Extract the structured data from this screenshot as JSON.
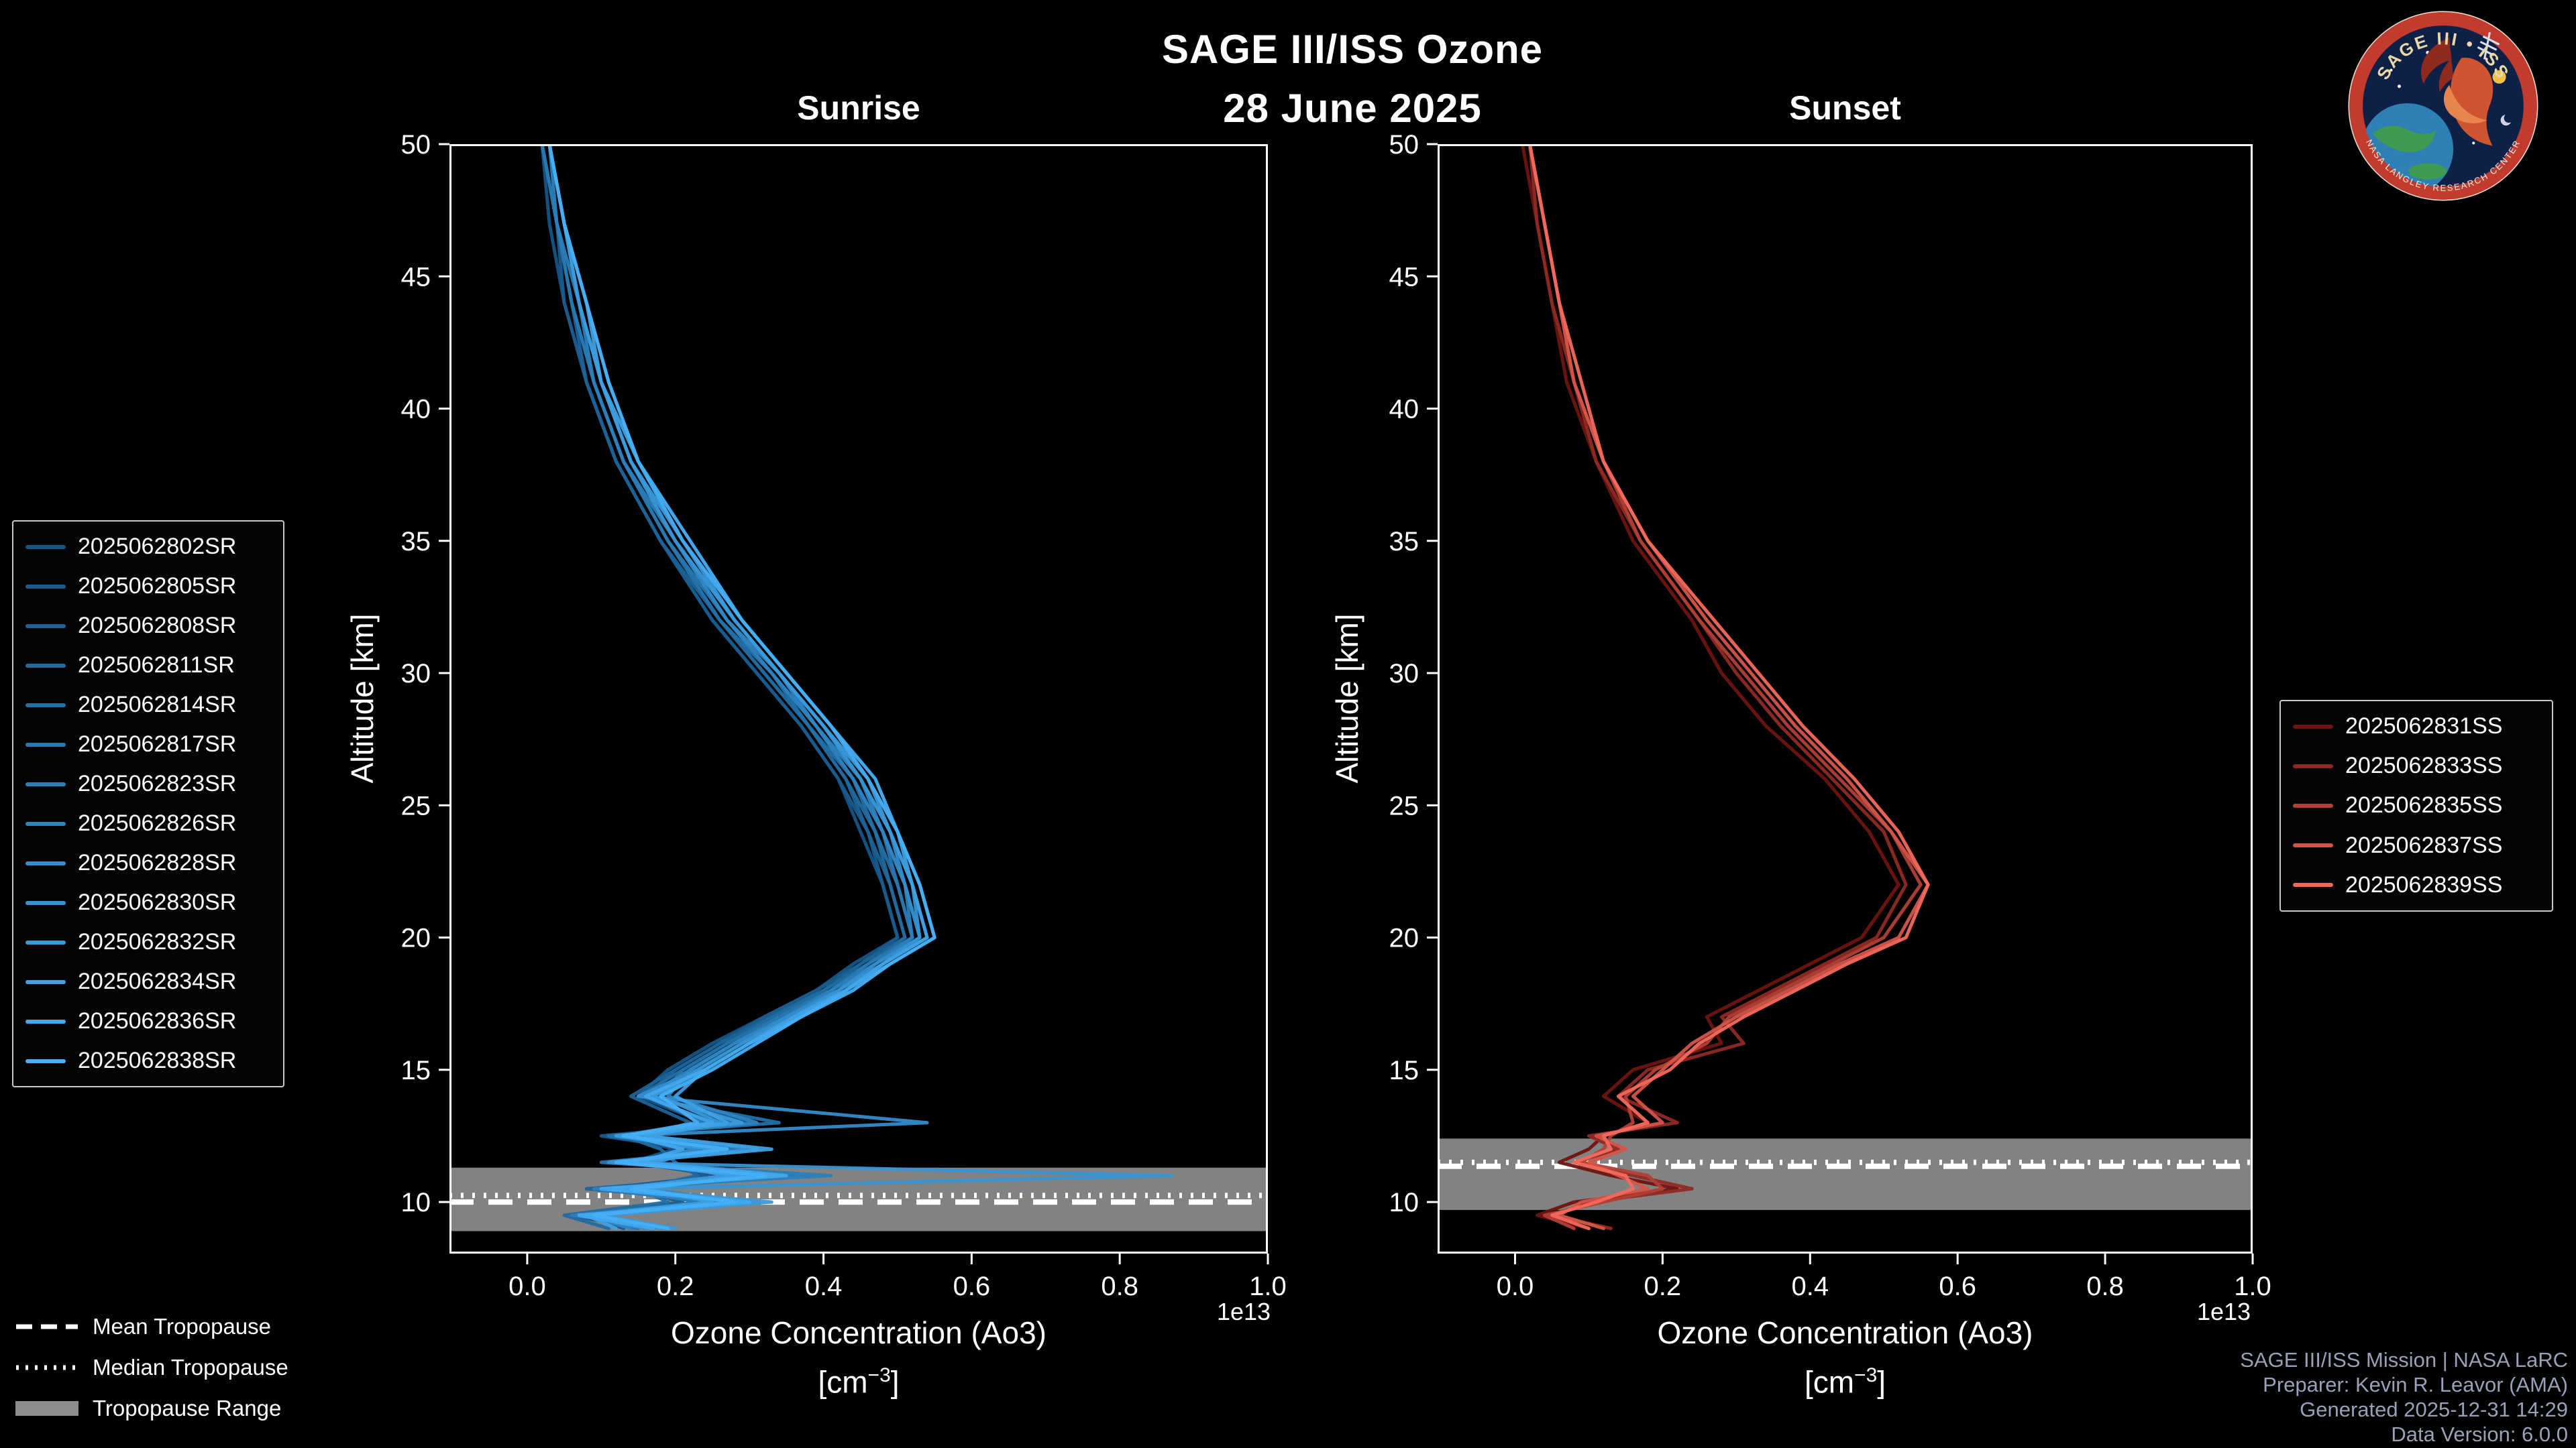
{
  "header": {
    "title_line1": "SAGE III/ISS Ozone",
    "title_line2": "28 June 2025"
  },
  "logo": {
    "arc_text": "SAGE III • ISS",
    "ring_text": "NASA LANGLEY RESEARCH CENTER"
  },
  "axis": {
    "ylabel": "Altitude [km]",
    "xlabel": "Ozone Concentration (Ao3)",
    "unit_open": "[cm",
    "unit_exp": "−3",
    "unit_close": "]"
  },
  "tropopause_legend": {
    "mean_label": "Mean Tropopause",
    "median_label": "Median Tropopause",
    "range_label": "Tropopause Range"
  },
  "footer": {
    "line1": "SAGE III/ISS Mission | NASA LaRC",
    "line2": "Preparer: Kevin R. Leavor (AMA)",
    "line3": "Generated 2025-12-31 14:29",
    "line4": "Data Version: 6.0.0"
  },
  "chart_data": [
    {
      "type": "line",
      "panel": "sunrise",
      "title": "Sunrise",
      "xlabel": "Ozone Concentration (Ao3) [cm^-3]",
      "ylabel": "Altitude [km]",
      "x_offset_label": "1e13",
      "x_unit_multiplier": 10000000000000.0,
      "xlim": [
        -0.105,
        1.0
      ],
      "ylim": [
        8.05,
        50
      ],
      "x_ticks": [
        0.0,
        0.2,
        0.4,
        0.6,
        0.8,
        1.0
      ],
      "x_tick_labels": [
        "0.0",
        "0.2",
        "0.4",
        "0.6",
        "0.8",
        "1.0"
      ],
      "y_ticks": [
        10,
        15,
        20,
        25,
        30,
        35,
        40,
        45,
        50
      ],
      "grid": false,
      "legend_position": "left-outside",
      "altitudes_km": [
        50,
        47,
        44,
        41,
        38,
        35,
        32,
        30,
        28,
        26,
        24,
        22,
        20,
        19,
        18,
        17,
        16,
        15,
        14,
        13,
        12.5,
        12,
        11.5,
        11,
        10.5,
        10,
        9.5,
        9
      ],
      "tropopause": {
        "mean_km": 10.0,
        "median_km": 10.25,
        "range_km": [
          8.9,
          11.3
        ]
      },
      "series": [
        {
          "name": "2025062802SR",
          "color": "#145587",
          "values": [
            0.02,
            0.03,
            0.05,
            0.08,
            0.12,
            0.18,
            0.25,
            0.31,
            0.37,
            0.42,
            0.45,
            0.48,
            0.5,
            0.44,
            0.39,
            0.32,
            0.25,
            0.19,
            0.15,
            0.24,
            0.12,
            0.2,
            0.14,
            0.26,
            0.1,
            0.24,
            0.06,
            0.15
          ]
        },
        {
          "name": "2025062805SR",
          "color": "#185C8F",
          "values": [
            0.02,
            0.04,
            0.05,
            0.08,
            0.12,
            0.18,
            0.25,
            0.31,
            0.37,
            0.42,
            0.46,
            0.48,
            0.5,
            0.45,
            0.39,
            0.32,
            0.26,
            0.2,
            0.16,
            0.3,
            0.1,
            0.22,
            0.18,
            0.24,
            0.14,
            0.21,
            0.08,
            0.13
          ]
        },
        {
          "name": "2025062808SR",
          "color": "#1C6398",
          "values": [
            0.02,
            0.04,
            0.06,
            0.08,
            0.12,
            0.18,
            0.26,
            0.32,
            0.38,
            0.43,
            0.46,
            0.49,
            0.51,
            0.45,
            0.4,
            0.33,
            0.26,
            0.2,
            0.14,
            0.22,
            0.16,
            0.27,
            0.12,
            0.31,
            0.08,
            0.27,
            0.09,
            0.19
          ]
        },
        {
          "name": "2025062811SR",
          "color": "#206AA0",
          "values": [
            0.02,
            0.04,
            0.06,
            0.09,
            0.13,
            0.19,
            0.26,
            0.32,
            0.38,
            0.43,
            0.47,
            0.49,
            0.51,
            0.46,
            0.4,
            0.33,
            0.27,
            0.21,
            0.18,
            0.26,
            0.13,
            0.18,
            0.2,
            0.23,
            0.15,
            0.19,
            0.05,
            0.11
          ]
        },
        {
          "name": "2025062814SR",
          "color": "#2371A9",
          "values": [
            0.02,
            0.04,
            0.06,
            0.09,
            0.13,
            0.19,
            0.26,
            0.33,
            0.38,
            0.44,
            0.47,
            0.5,
            0.52,
            0.46,
            0.41,
            0.34,
            0.27,
            0.21,
            0.15,
            0.34,
            0.11,
            0.24,
            0.15,
            0.34,
            0.1,
            0.29,
            0.07,
            0.17
          ]
        },
        {
          "name": "2025062817SR",
          "color": "#2778B1",
          "values": [
            0.02,
            0.04,
            0.06,
            0.09,
            0.13,
            0.19,
            0.27,
            0.33,
            0.39,
            0.44,
            0.48,
            0.5,
            0.52,
            0.46,
            0.41,
            0.34,
            0.28,
            0.22,
            0.17,
            0.28,
            0.14,
            0.29,
            0.1,
            0.37,
            0.13,
            0.23,
            0.09,
            0.15
          ]
        },
        {
          "name": "2025062823SR",
          "color": "#2B7FBA",
          "values": [
            0.03,
            0.04,
            0.07,
            0.09,
            0.13,
            0.2,
            0.27,
            0.33,
            0.39,
            0.44,
            0.48,
            0.51,
            0.52,
            0.47,
            0.41,
            0.35,
            0.28,
            0.22,
            0.16,
            0.24,
            0.17,
            0.25,
            0.12,
            0.41,
            0.09,
            0.25,
            0.06,
            0.19
          ]
        },
        {
          "name": "2025062826SR",
          "color": "#2F85C2",
          "values": [
            0.03,
            0.05,
            0.07,
            0.1,
            0.14,
            0.2,
            0.27,
            0.34,
            0.39,
            0.45,
            0.48,
            0.51,
            0.53,
            0.47,
            0.42,
            0.35,
            0.28,
            0.22,
            0.19,
            0.31,
            0.12,
            0.27,
            0.16,
            0.29,
            0.15,
            0.31,
            0.08,
            0.14
          ]
        },
        {
          "name": "2025062828SR",
          "color": "#338CCB",
          "values": [
            0.03,
            0.05,
            0.07,
            0.1,
            0.14,
            0.2,
            0.28,
            0.34,
            0.4,
            0.45,
            0.49,
            0.51,
            0.53,
            0.47,
            0.42,
            0.35,
            0.29,
            0.23,
            0.15,
            0.54,
            0.13,
            0.23,
            0.14,
            0.33,
            0.11,
            0.27,
            0.07,
            0.16
          ]
        },
        {
          "name": "2025062830SR",
          "color": "#3793D3",
          "values": [
            0.03,
            0.05,
            0.07,
            0.1,
            0.14,
            0.2,
            0.28,
            0.34,
            0.4,
            0.45,
            0.49,
            0.52,
            0.53,
            0.48,
            0.42,
            0.36,
            0.29,
            0.23,
            0.18,
            0.26,
            0.15,
            0.31,
            0.11,
            0.87,
            0.14,
            0.29,
            0.09,
            0.18
          ]
        },
        {
          "name": "2025062832SR",
          "color": "#3A9ADC",
          "values": [
            0.03,
            0.05,
            0.07,
            0.1,
            0.14,
            0.21,
            0.28,
            0.34,
            0.4,
            0.46,
            0.49,
            0.52,
            0.54,
            0.48,
            0.43,
            0.36,
            0.3,
            0.24,
            0.17,
            0.29,
            0.12,
            0.25,
            0.17,
            0.27,
            0.12,
            0.33,
            0.1,
            0.2
          ]
        },
        {
          "name": "2025062834SR",
          "color": "#3EA1E4",
          "values": [
            0.03,
            0.05,
            0.08,
            0.1,
            0.15,
            0.21,
            0.29,
            0.35,
            0.41,
            0.46,
            0.5,
            0.52,
            0.54,
            0.48,
            0.43,
            0.36,
            0.3,
            0.24,
            0.2,
            0.27,
            0.16,
            0.33,
            0.13,
            0.29,
            0.16,
            0.25,
            0.08,
            0.12
          ]
        },
        {
          "name": "2025062836SR",
          "color": "#42A8ED",
          "values": [
            0.03,
            0.05,
            0.08,
            0.11,
            0.15,
            0.21,
            0.29,
            0.35,
            0.41,
            0.46,
            0.5,
            0.53,
            0.55,
            0.49,
            0.43,
            0.37,
            0.3,
            0.24,
            0.16,
            0.25,
            0.14,
            0.21,
            0.15,
            0.35,
            0.1,
            0.3,
            0.07,
            0.17
          ]
        },
        {
          "name": "2025062838SR",
          "color": "#46AFF5",
          "values": [
            0.03,
            0.05,
            0.08,
            0.11,
            0.15,
            0.22,
            0.29,
            0.35,
            0.41,
            0.47,
            0.5,
            0.53,
            0.55,
            0.49,
            0.44,
            0.37,
            0.31,
            0.25,
            0.18,
            0.23,
            0.13,
            0.27,
            0.12,
            0.32,
            0.14,
            0.28,
            0.09,
            0.19
          ]
        }
      ]
    },
    {
      "type": "line",
      "panel": "sunset",
      "title": "Sunset",
      "xlabel": "Ozone Concentration (Ao3) [cm^-3]",
      "ylabel": "Altitude [km]",
      "x_offset_label": "1e13",
      "x_unit_multiplier": 10000000000000.0,
      "xlim": [
        -0.105,
        1.0
      ],
      "ylim": [
        8.05,
        50
      ],
      "x_ticks": [
        0.0,
        0.2,
        0.4,
        0.6,
        0.8,
        1.0
      ],
      "x_tick_labels": [
        "0.0",
        "0.2",
        "0.4",
        "0.6",
        "0.8",
        "1.0"
      ],
      "y_ticks": [
        10,
        15,
        20,
        25,
        30,
        35,
        40,
        45,
        50
      ],
      "grid": false,
      "legend_position": "right-outside",
      "altitudes_km": [
        50,
        47,
        44,
        41,
        38,
        35,
        32,
        30,
        28,
        26,
        24,
        22,
        20,
        19,
        18,
        17,
        16,
        15,
        14,
        13,
        12.5,
        12,
        11.5,
        11,
        10.5,
        10,
        9.5,
        9
      ],
      "tropopause": {
        "mean_km": 11.35,
        "median_km": 11.5,
        "range_km": [
          9.7,
          12.4
        ]
      },
      "series": [
        {
          "name": "2025062831SS",
          "color": "#6F1410",
          "values": [
            0.01,
            0.03,
            0.05,
            0.07,
            0.11,
            0.16,
            0.24,
            0.28,
            0.34,
            0.42,
            0.48,
            0.52,
            0.47,
            0.4,
            0.33,
            0.26,
            0.28,
            0.16,
            0.12,
            0.18,
            0.12,
            0.1,
            0.06,
            0.13,
            0.22,
            0.08,
            0.03,
            0.1
          ]
        },
        {
          "name": "2025062833SS",
          "color": "#902923",
          "values": [
            0.02,
            0.03,
            0.05,
            0.08,
            0.11,
            0.17,
            0.25,
            0.3,
            0.36,
            0.43,
            0.5,
            0.53,
            0.49,
            0.42,
            0.35,
            0.28,
            0.31,
            0.18,
            0.14,
            0.22,
            0.1,
            0.14,
            0.08,
            0.16,
            0.24,
            0.1,
            0.05,
            0.13
          ]
        },
        {
          "name": "2025062835SS",
          "color": "#B23F36",
          "values": [
            0.02,
            0.04,
            0.06,
            0.08,
            0.12,
            0.17,
            0.25,
            0.31,
            0.37,
            0.44,
            0.51,
            0.55,
            0.5,
            0.43,
            0.36,
            0.29,
            0.26,
            0.19,
            0.15,
            0.16,
            0.13,
            0.12,
            0.09,
            0.18,
            0.2,
            0.12,
            0.04,
            0.08
          ]
        },
        {
          "name": "2025062837SS",
          "color": "#D35449",
          "values": [
            0.02,
            0.04,
            0.06,
            0.08,
            0.12,
            0.18,
            0.26,
            0.32,
            0.38,
            0.45,
            0.51,
            0.56,
            0.52,
            0.44,
            0.37,
            0.3,
            0.24,
            0.2,
            0.16,
            0.2,
            0.11,
            0.15,
            0.1,
            0.14,
            0.18,
            0.09,
            0.06,
            0.12
          ]
        },
        {
          "name": "2025062839SS",
          "color": "#F4695C",
          "values": [
            0.02,
            0.04,
            0.06,
            0.09,
            0.12,
            0.18,
            0.27,
            0.33,
            0.39,
            0.46,
            0.52,
            0.56,
            0.53,
            0.45,
            0.38,
            0.31,
            0.25,
            0.21,
            0.14,
            0.18,
            0.12,
            0.13,
            0.08,
            0.15,
            0.16,
            0.11,
            0.05,
            0.1
          ]
        }
      ]
    }
  ]
}
